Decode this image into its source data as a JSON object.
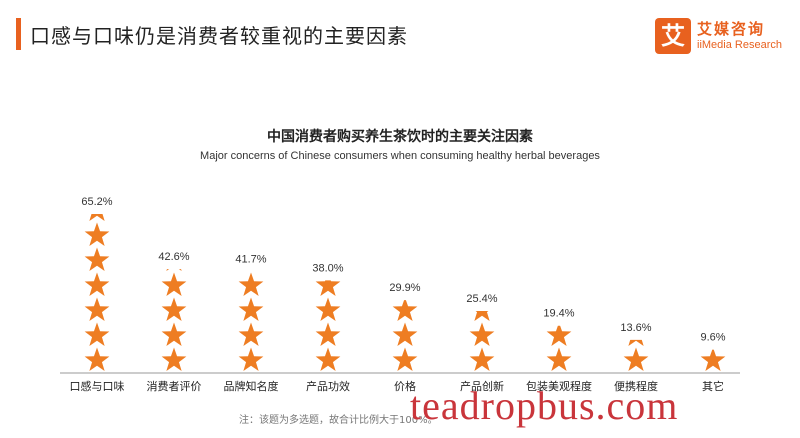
{
  "header": {
    "title": "口感与口味仍是消费者较重视的主要因素"
  },
  "logo": {
    "icon_char": "艾",
    "name_cn": "艾媒咨询",
    "name_en": "iiMedia Research"
  },
  "chart_data": {
    "type": "bar",
    "title": "中国消费者购买养生茶饮时的主要关注因素",
    "subtitle": "Major concerns of Chinese consumers when consuming healthy herbal beverages",
    "categories": [
      "口感与口味",
      "消费者评价",
      "品牌知名度",
      "产品功效",
      "价格",
      "产品创新",
      "包装美观程度",
      "便携程度",
      "其它"
    ],
    "values": [
      65.2,
      42.6,
      41.7,
      38.0,
      29.9,
      25.4,
      19.4,
      13.6,
      9.6
    ],
    "labels": [
      "65.2%",
      "42.6%",
      "41.7%",
      "38.0%",
      "29.9%",
      "25.4%",
      "19.4%",
      "13.6%",
      "9.6%"
    ],
    "unit": "%",
    "ylim": [
      0,
      65.2
    ],
    "mark": "star",
    "color": "#ee7d22",
    "grid": false
  },
  "footnote": "注：该题为多选题，故合计比例大于100%。",
  "watermark": "teadropbus.com"
}
